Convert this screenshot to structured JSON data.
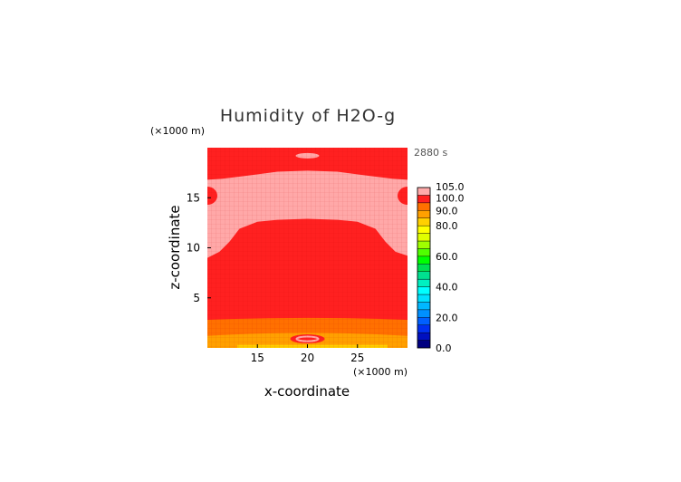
{
  "chart_data": {
    "type": "heatmap",
    "title": "Humidity of H2O-g",
    "xlabel": "x-coordinate",
    "ylabel": "z-coordinate",
    "x_unit": "(×1000 m)",
    "y_unit": "(×1000 m)",
    "time_label": "2880 s",
    "xlim": [
      10,
      30
    ],
    "ylim": [
      0,
      20
    ],
    "x_ticks": [
      15,
      20,
      25
    ],
    "y_ticks": [
      5,
      10,
      15
    ],
    "colorbar": {
      "range": [
        0,
        105
      ],
      "labels": [
        "105.0",
        "100.0",
        "90.0",
        "80.0",
        "60.0",
        "40.0",
        "20.0",
        "0.0"
      ],
      "label_values": [
        105,
        100,
        90,
        80,
        60,
        40,
        20,
        0
      ],
      "levels": [
        {
          "from": 0,
          "to": 5,
          "color": "#000080"
        },
        {
          "from": 5,
          "to": 10,
          "color": "#0010c0"
        },
        {
          "from": 10,
          "to": 15,
          "color": "#0030f0"
        },
        {
          "from": 15,
          "to": 20,
          "color": "#0060ff"
        },
        {
          "from": 20,
          "to": 25,
          "color": "#0090ff"
        },
        {
          "from": 25,
          "to": 30,
          "color": "#00b8ff"
        },
        {
          "from": 30,
          "to": 35,
          "color": "#00e0ff"
        },
        {
          "from": 35,
          "to": 40,
          "color": "#00ffff"
        },
        {
          "from": 40,
          "to": 45,
          "color": "#00f0c0"
        },
        {
          "from": 45,
          "to": 50,
          "color": "#00e090"
        },
        {
          "from": 50,
          "to": 55,
          "color": "#00e050"
        },
        {
          "from": 55,
          "to": 60,
          "color": "#00ff00"
        },
        {
          "from": 60,
          "to": 65,
          "color": "#50ff00"
        },
        {
          "from": 65,
          "to": 70,
          "color": "#a0ff00"
        },
        {
          "from": 70,
          "to": 75,
          "color": "#e0ff00"
        },
        {
          "from": 75,
          "to": 80,
          "color": "#ffff00"
        },
        {
          "from": 80,
          "to": 85,
          "color": "#ffd000"
        },
        {
          "from": 85,
          "to": 90,
          "color": "#ffa000"
        },
        {
          "from": 90,
          "to": 95,
          "color": "#ff7000"
        },
        {
          "from": 95,
          "to": 100,
          "color": "#ff2020"
        },
        {
          "from": 100,
          "to": 105,
          "color": "#ffaaaa"
        }
      ]
    },
    "fields": {
      "background": {
        "value": 97,
        "color": "#ff2020"
      },
      "supersaturated": {
        "value": 102,
        "color": "#ffa8a8"
      },
      "low_band_1": {
        "value": 92,
        "color": "#ff7000",
        "z_range": [
          1.2,
          2.8
        ]
      },
      "low_band_2": {
        "value": 87,
        "color": "#ffa000",
        "z_range": [
          0.3,
          1.2
        ]
      },
      "bottom_band": {
        "value": 80,
        "color": "#ffd000",
        "z_range": [
          0,
          0.3
        ]
      }
    }
  }
}
